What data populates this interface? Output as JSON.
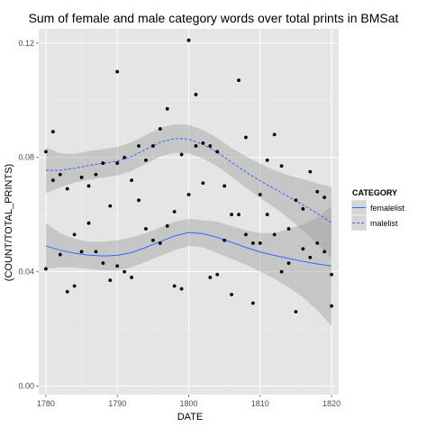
{
  "chart_data": {
    "type": "scatter",
    "title": "Sum of female and male category words over total prints in BMSat",
    "xlabel": "DATE",
    "ylabel": "(COUNT/TOTAL_PRINTS)",
    "xlim": [
      1779,
      1821
    ],
    "ylim": [
      -0.003,
      0.125
    ],
    "x_ticks": [
      1780,
      1790,
      1800,
      1810,
      1820
    ],
    "y_ticks": [
      0.0,
      0.04,
      0.08,
      0.12
    ],
    "y_tick_labels": [
      "0.00",
      "0.04",
      "0.08",
      "0.12"
    ],
    "grid": true,
    "background": "#e5e5e5",
    "legend": {
      "title": "CATEGORY",
      "placement": "right",
      "entries": [
        {
          "label": "femalelist",
          "color": "#3366ff",
          "linestyle": "solid"
        },
        {
          "label": "malelist",
          "color": "#3366ff",
          "linestyle": "dashed"
        }
      ]
    },
    "points": [
      [
        1780,
        0.082
      ],
      [
        1780,
        0.041
      ],
      [
        1781,
        0.089
      ],
      [
        1781,
        0.072
      ],
      [
        1782,
        0.074
      ],
      [
        1782,
        0.046
      ],
      [
        1783,
        0.033
      ],
      [
        1783,
        0.069
      ],
      [
        1784,
        0.053
      ],
      [
        1784,
        0.035
      ],
      [
        1785,
        0.073
      ],
      [
        1785,
        0.047
      ],
      [
        1786,
        0.07
      ],
      [
        1786,
        0.057
      ],
      [
        1787,
        0.074
      ],
      [
        1787,
        0.047
      ],
      [
        1788,
        0.078
      ],
      [
        1788,
        0.043
      ],
      [
        1789,
        0.063
      ],
      [
        1789,
        0.037
      ],
      [
        1790,
        0.11
      ],
      [
        1790,
        0.078
      ],
      [
        1790,
        0.042
      ],
      [
        1791,
        0.08
      ],
      [
        1791,
        0.04
      ],
      [
        1792,
        0.072
      ],
      [
        1792,
        0.038
      ],
      [
        1793,
        0.084
      ],
      [
        1793,
        0.065
      ],
      [
        1794,
        0.079
      ],
      [
        1794,
        0.055
      ],
      [
        1795,
        0.084
      ],
      [
        1795,
        0.051
      ],
      [
        1796,
        0.09
      ],
      [
        1796,
        0.05
      ],
      [
        1797,
        0.097
      ],
      [
        1797,
        0.056
      ],
      [
        1798,
        0.061
      ],
      [
        1798,
        0.035
      ],
      [
        1799,
        0.081
      ],
      [
        1799,
        0.034
      ],
      [
        1800,
        0.121
      ],
      [
        1800,
        0.067
      ],
      [
        1801,
        0.102
      ],
      [
        1801,
        0.084
      ],
      [
        1802,
        0.085
      ],
      [
        1802,
        0.071
      ],
      [
        1803,
        0.084
      ],
      [
        1803,
        0.038
      ],
      [
        1804,
        0.082
      ],
      [
        1804,
        0.039
      ],
      [
        1805,
        0.07
      ],
      [
        1805,
        0.051
      ],
      [
        1806,
        0.06
      ],
      [
        1806,
        0.032
      ],
      [
        1807,
        0.107
      ],
      [
        1807,
        0.06
      ],
      [
        1808,
        0.087
      ],
      [
        1808,
        0.053
      ],
      [
        1809,
        0.05
      ],
      [
        1809,
        0.029
      ],
      [
        1810,
        0.067
      ],
      [
        1810,
        0.05
      ],
      [
        1811,
        0.079
      ],
      [
        1811,
        0.06
      ],
      [
        1812,
        0.088
      ],
      [
        1812,
        0.053
      ],
      [
        1813,
        0.077
      ],
      [
        1813,
        0.04
      ],
      [
        1814,
        0.055
      ],
      [
        1814,
        0.043
      ],
      [
        1815,
        0.065
      ],
      [
        1815,
        0.026
      ],
      [
        1816,
        0.062
      ],
      [
        1816,
        0.048
      ],
      [
        1817,
        0.075
      ],
      [
        1817,
        0.045
      ],
      [
        1818,
        0.068
      ],
      [
        1818,
        0.05
      ],
      [
        1819,
        0.066
      ],
      [
        1819,
        0.047
      ],
      [
        1820,
        0.039
      ],
      [
        1820,
        0.028
      ]
    ],
    "series": [
      {
        "name": "femalelist",
        "color": "#3366ff",
        "linestyle": "solid",
        "x": [
          1780,
          1782,
          1784,
          1786,
          1788,
          1790,
          1792,
          1794,
          1796,
          1798,
          1800,
          1802,
          1804,
          1806,
          1808,
          1810,
          1812,
          1814,
          1816,
          1818,
          1820
        ],
        "y": [
          0.049,
          0.0475,
          0.0465,
          0.0458,
          0.0455,
          0.0457,
          0.0467,
          0.0485,
          0.0505,
          0.0525,
          0.0537,
          0.0533,
          0.052,
          0.0503,
          0.0485,
          0.0469,
          0.0457,
          0.0446,
          0.0436,
          0.0427,
          0.042
        ],
        "ci_lower": [
          0.041,
          0.0415,
          0.0415,
          0.041,
          0.0405,
          0.0405,
          0.0415,
          0.0435,
          0.0455,
          0.0475,
          0.049,
          0.0485,
          0.0465,
          0.0445,
          0.0425,
          0.04,
          0.0375,
          0.0345,
          0.031,
          0.0265,
          0.021
        ],
        "ci_upper": [
          0.057,
          0.0535,
          0.0515,
          0.0505,
          0.0505,
          0.051,
          0.052,
          0.0535,
          0.0555,
          0.0575,
          0.0585,
          0.058,
          0.0575,
          0.056,
          0.0545,
          0.0535,
          0.0535,
          0.055,
          0.0565,
          0.059,
          0.063
        ]
      },
      {
        "name": "malelist",
        "color": "#3366ff",
        "linestyle": "dashed",
        "x": [
          1780,
          1782,
          1784,
          1786,
          1788,
          1790,
          1792,
          1794,
          1796,
          1798,
          1800,
          1802,
          1804,
          1806,
          1808,
          1810,
          1812,
          1814,
          1816,
          1818,
          1820
        ],
        "y": [
          0.0755,
          0.0755,
          0.0762,
          0.0772,
          0.0779,
          0.0787,
          0.0803,
          0.0828,
          0.0853,
          0.0866,
          0.0864,
          0.0846,
          0.0818,
          0.0783,
          0.0749,
          0.0718,
          0.069,
          0.0662,
          0.0634,
          0.0604,
          0.0572
        ],
        "ci_lower": [
          0.0675,
          0.0695,
          0.0712,
          0.0722,
          0.0729,
          0.0737,
          0.0753,
          0.0778,
          0.0803,
          0.0816,
          0.0814,
          0.0796,
          0.0768,
          0.0733,
          0.0694,
          0.0658,
          0.0625,
          0.0587,
          0.0544,
          0.0499,
          0.0447
        ],
        "ci_upper": [
          0.0835,
          0.0815,
          0.0812,
          0.0822,
          0.0829,
          0.0837,
          0.0853,
          0.0878,
          0.0903,
          0.0916,
          0.0914,
          0.0896,
          0.0868,
          0.0833,
          0.0804,
          0.0778,
          0.0755,
          0.0737,
          0.0724,
          0.0709,
          0.0697
        ]
      }
    ]
  }
}
